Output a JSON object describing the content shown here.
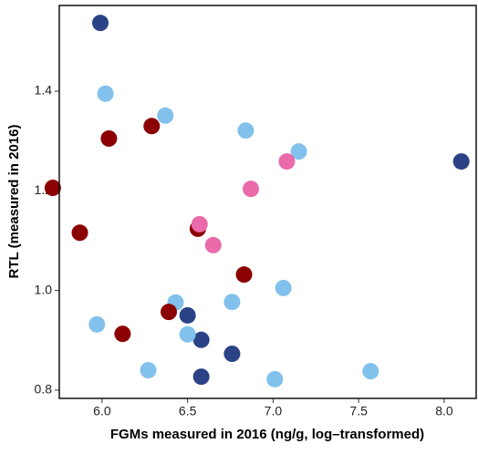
{
  "chart_data": {
    "type": "scatter",
    "x_label": "FGMs measured in 2016 (ng/g, log–transformed)",
    "y_label": "RTL (measured in 2016)",
    "xlim": [
      5.75,
      8.187
    ],
    "ylim": [
      0.7835,
      1.572
    ],
    "xticks": [
      {
        "value": 6,
        "label": "6.0"
      },
      6.5,
      {
        "value": 7,
        "label": "7.0"
      },
      7.5,
      {
        "value": 8,
        "label": "8.0"
      }
    ],
    "yticks": [
      0.8,
      {
        "value": 1,
        "label": "1.0"
      },
      1.2,
      1.4
    ],
    "series": [
      {
        "color": "#2b4286",
        "x": [
          5.99,
          8.1,
          6.5,
          6.58,
          6.76,
          6.58
        ],
        "values": [
          1.537,
          1.259,
          0.95,
          0.901,
          0.873,
          0.827
        ]
      },
      {
        "color": "#82c1ec",
        "x": [
          6.02,
          6.37,
          6.84,
          7.15,
          6.43,
          6.76,
          7.06,
          5.97,
          6.5,
          6.27,
          7.01,
          7.57
        ],
        "values": [
          1.395,
          1.351,
          1.321,
          1.279,
          0.976,
          0.977,
          1.005,
          0.932,
          0.912,
          0.84,
          0.822,
          0.838
        ]
      },
      {
        "color": "#8b0000",
        "x": [
          6.29,
          6.04,
          5.712,
          5.87,
          6.56,
          6.83,
          6.39,
          6.12
        ],
        "values": [
          1.33,
          1.305,
          1.206,
          1.116,
          1.124,
          1.032,
          0.957,
          0.913
        ]
      },
      {
        "color": "#ea6aaa",
        "x": [
          7.08,
          6.87,
          6.57,
          6.65
        ],
        "values": [
          1.259,
          1.204,
          1.133,
          1.091
        ]
      }
    ]
  }
}
